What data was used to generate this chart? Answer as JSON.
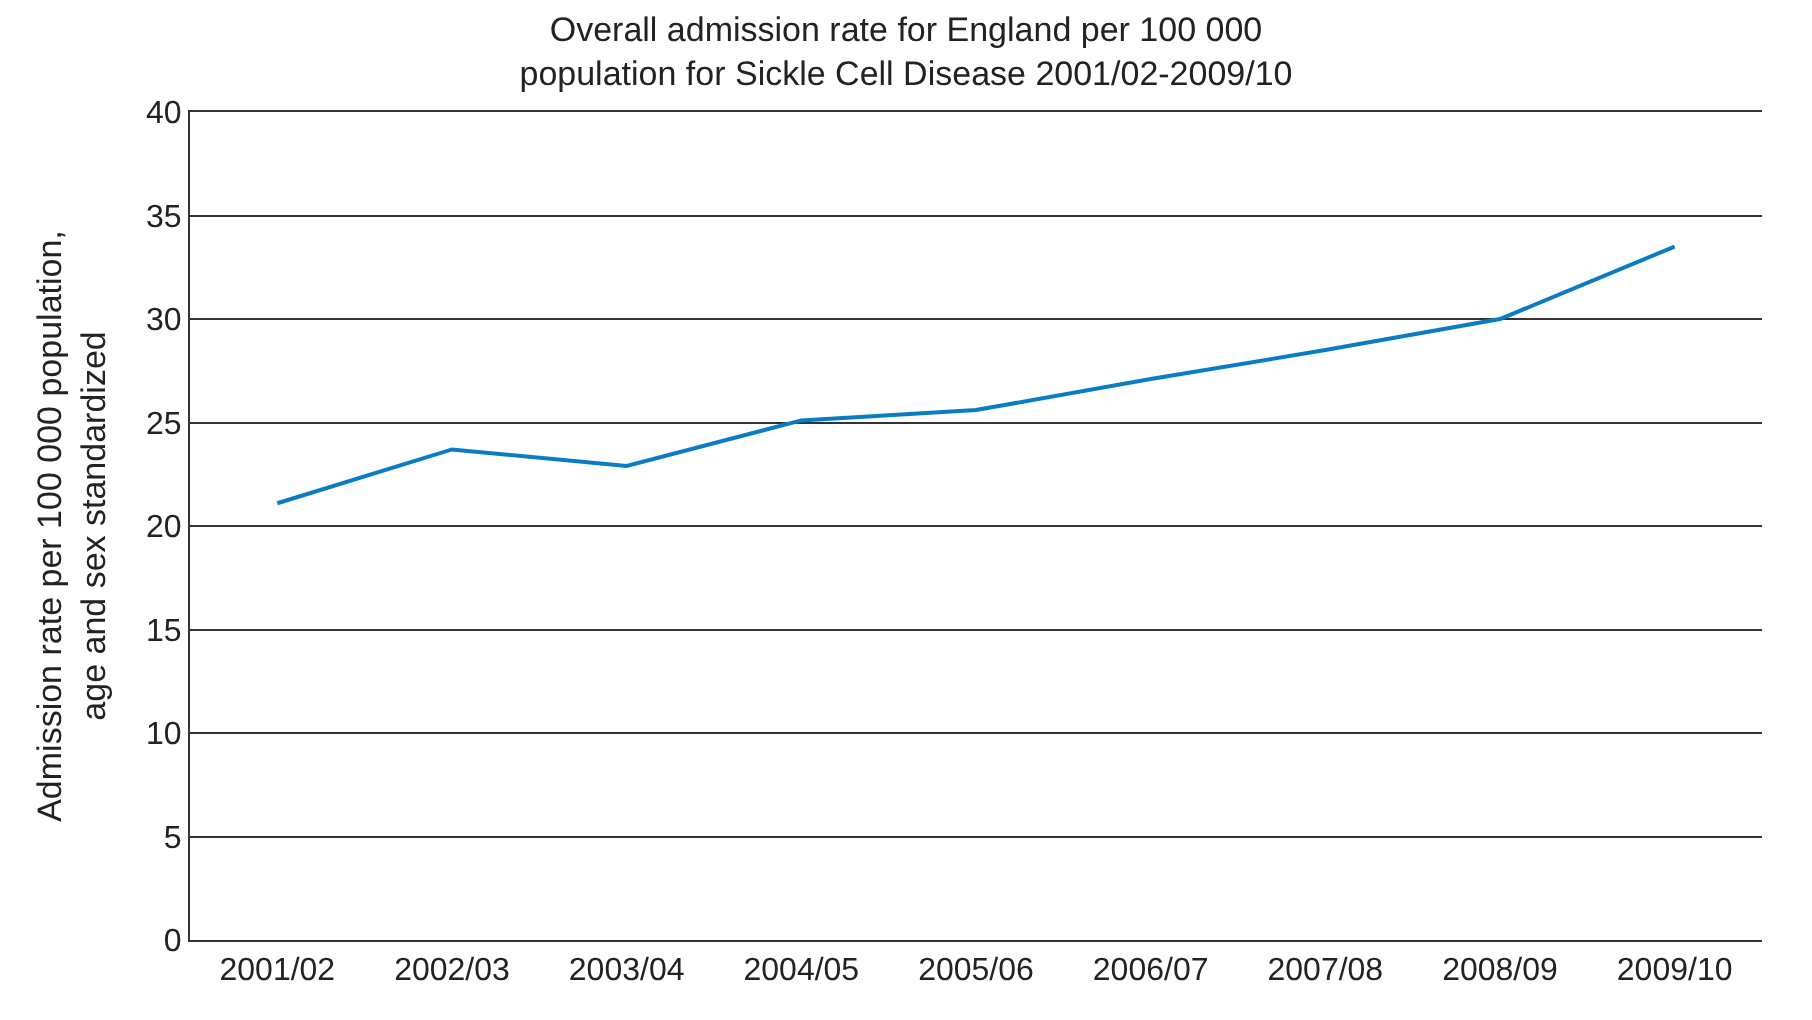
{
  "chart_data": {
    "type": "line",
    "title": "Overall admission rate for England per 100 000\npopulation for Sickle Cell Disease 2001/02-2009/10",
    "ylabel": "Admission rate per 100 000 population,\nage and sex standardized",
    "categories": [
      "2001/02",
      "2002/03",
      "2003/04",
      "2004/05",
      "2005/06",
      "2006/07",
      "2007/08",
      "2008/09",
      "2009/10"
    ],
    "series": [
      {
        "color": "#0a7cc4",
        "values": [
          21.1,
          23.7,
          22.9,
          25.1,
          25.6,
          27.1,
          28.5,
          30.0,
          33.5
        ]
      }
    ],
    "ylim": [
      0,
      40
    ],
    "yticks": [
      0,
      5,
      10,
      15,
      20,
      25,
      30,
      35,
      40
    ],
    "grid": "y",
    "marker": "none",
    "line_style": "solid"
  }
}
